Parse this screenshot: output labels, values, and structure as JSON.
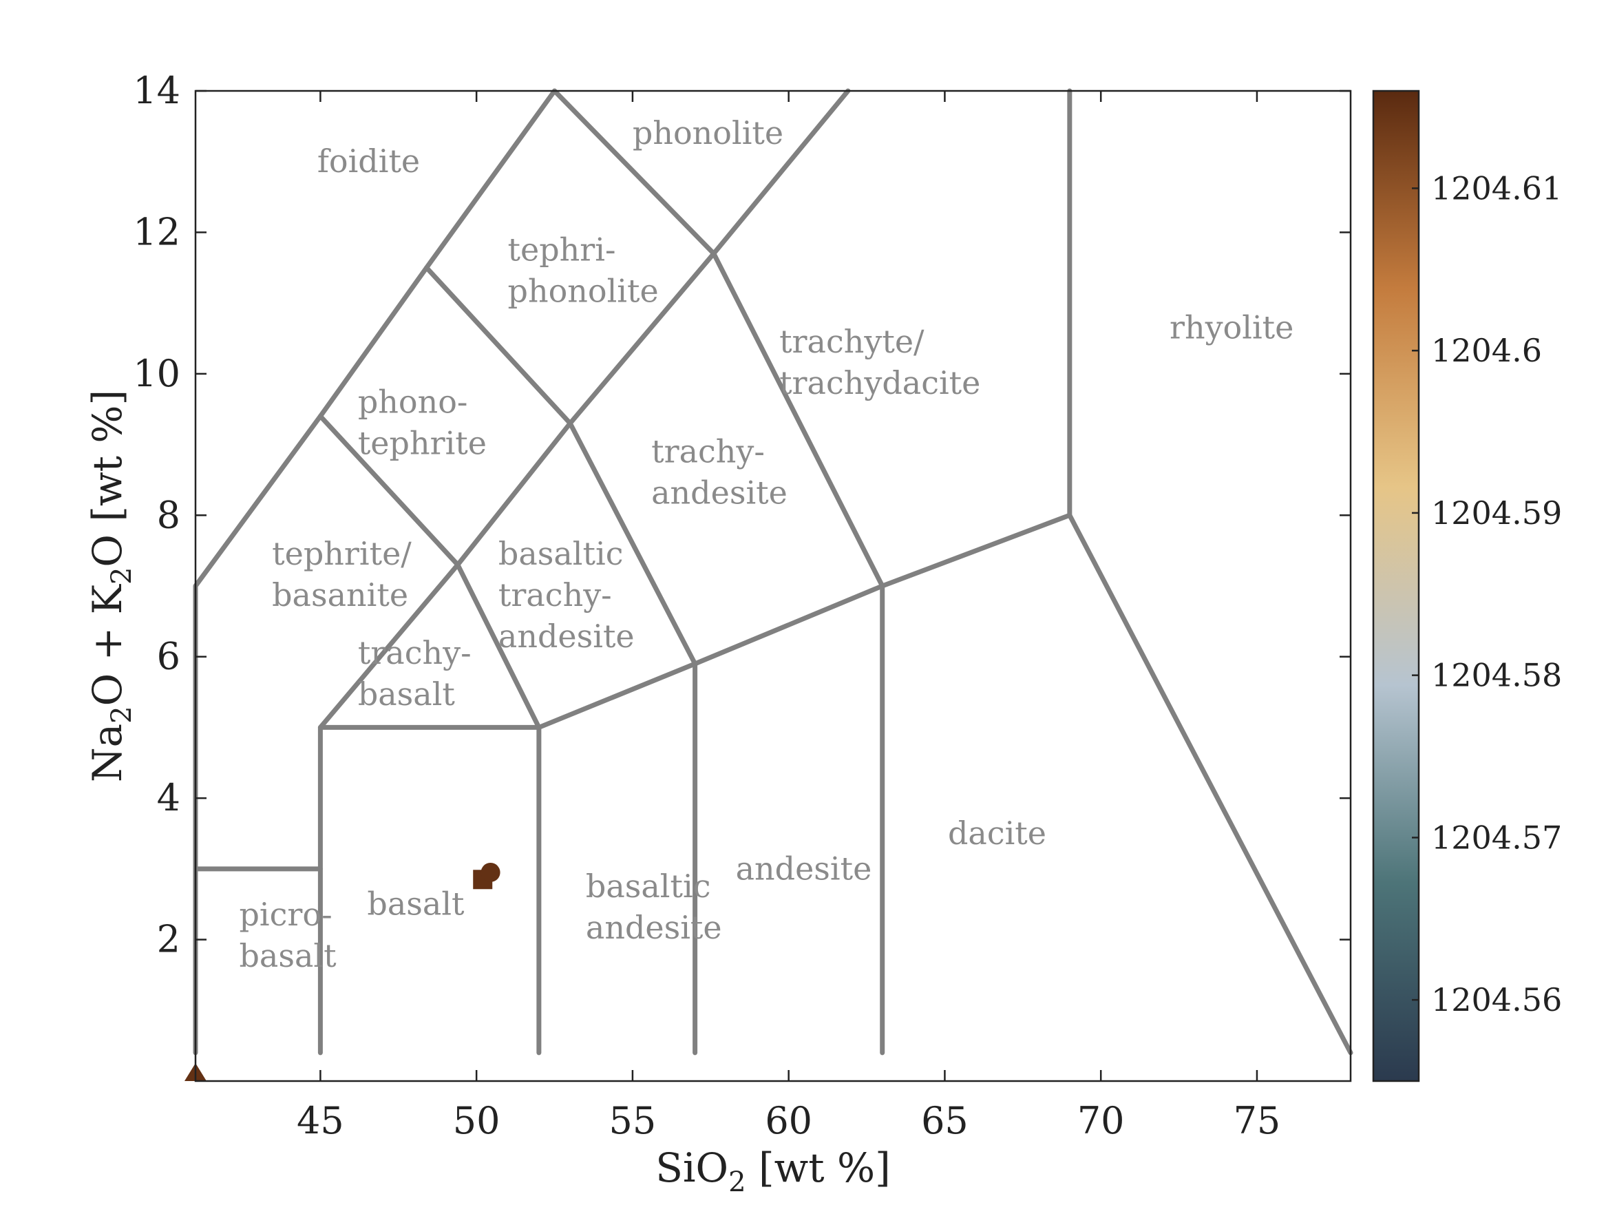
{
  "chart_data": {
    "type": "scatter",
    "xlabel_main": "SiO",
    "xlabel_sub": "2",
    "xlabel_rest": " [wt %]",
    "ylabel_parts": [
      {
        "t": "Na",
        "sub": false
      },
      {
        "t": "2",
        "sub": true
      },
      {
        "t": "O + K",
        "sub": false
      },
      {
        "t": "2",
        "sub": true
      },
      {
        "t": "O [wt %]",
        "sub": false
      }
    ],
    "xlim": [
      41,
      78
    ],
    "ylim": [
      0,
      14
    ],
    "x_ticks": [
      45,
      50,
      55,
      60,
      65,
      70,
      75
    ],
    "x_tick_labels": [
      "45",
      "50",
      "55",
      "60",
      "65",
      "70",
      "75"
    ],
    "y_ticks": [
      2,
      4,
      6,
      8,
      10,
      12,
      14
    ],
    "y_tick_labels": [
      "2",
      "4",
      "6",
      "8",
      "10",
      "12",
      "14"
    ],
    "grid": false,
    "colorbar": {
      "range": [
        1204.555,
        1204.616
      ],
      "ticks": [
        1204.56,
        1204.57,
        1204.58,
        1204.59,
        1204.6,
        1204.61
      ],
      "tick_labels": [
        "1204.56",
        "1204.57",
        "1204.58",
        "1204.59",
        "1204.6",
        "1204.61"
      ],
      "colors": [
        "#2b3a4e",
        "#4d7478",
        "#b6c4d0",
        "#e6c587",
        "#c47c3e",
        "#5a2a10"
      ]
    },
    "boundaries": [
      [
        [
          41,
          0.4
        ],
        [
          41,
          7
        ],
        [
          45,
          9.4
        ],
        [
          48.4,
          11.5
        ],
        [
          52.5,
          14
        ]
      ],
      [
        [
          45,
          0.4
        ],
        [
          45,
          5
        ],
        [
          52,
          5
        ],
        [
          52,
          0.4
        ]
      ],
      [
        [
          41,
          3
        ],
        [
          45,
          3
        ]
      ],
      [
        [
          45,
          5
        ],
        [
          49.4,
          7.3
        ],
        [
          52,
          5
        ]
      ],
      [
        [
          52,
          5
        ],
        [
          57,
          5.9
        ],
        [
          63,
          7
        ],
        [
          69,
          8
        ]
      ],
      [
        [
          57,
          0.4
        ],
        [
          57,
          5.9
        ],
        [
          53,
          9.3
        ],
        [
          48.4,
          11.5
        ]
      ],
      [
        [
          63,
          0.4
        ],
        [
          63,
          7
        ],
        [
          57.6,
          11.7
        ],
        [
          52.5,
          14
        ]
      ],
      [
        [
          45,
          9.4
        ],
        [
          49.4,
          7.3
        ],
        [
          53,
          9.3
        ],
        [
          57.6,
          11.7
        ],
        [
          61.9,
          14
        ]
      ],
      [
        [
          69,
          14
        ],
        [
          69,
          8
        ],
        [
          78,
          0.4
        ]
      ]
    ],
    "regions": [
      {
        "lines": [
          "foidite"
        ],
        "x": 44.9,
        "y": 12.85
      },
      {
        "lines": [
          "phonolite"
        ],
        "x": 55.0,
        "y": 13.25
      },
      {
        "lines": [
          "tephri-",
          "phonolite"
        ],
        "x": 51.0,
        "y": 11.6
      },
      {
        "lines": [
          "phono-",
          "tephrite"
        ],
        "x": 46.2,
        "y": 9.45
      },
      {
        "lines": [
          "tephrite/",
          "basanite"
        ],
        "x": 43.45,
        "y": 7.3
      },
      {
        "lines": [
          "trachy-",
          "basalt"
        ],
        "x": 46.2,
        "y": 5.9
      },
      {
        "lines": [
          "basaltic",
          "trachy-",
          "andesite"
        ],
        "x": 50.7,
        "y": 7.3
      },
      {
        "lines": [
          "trachy-",
          "andesite"
        ],
        "x": 55.6,
        "y": 8.75
      },
      {
        "lines": [
          "trachyte/",
          "trachydacite"
        ],
        "x": 59.7,
        "y": 10.3
      },
      {
        "lines": [
          "rhyolite"
        ],
        "x": 72.2,
        "y": 10.5
      },
      {
        "lines": [
          "picro-",
          "basalt"
        ],
        "x": 42.4,
        "y": 2.2
      },
      {
        "lines": [
          "basalt"
        ],
        "x": 46.5,
        "y": 2.35
      },
      {
        "lines": [
          "basaltic",
          "andesite"
        ],
        "x": 53.5,
        "y": 2.6
      },
      {
        "lines": [
          "andesite"
        ],
        "x": 58.3,
        "y": 2.85
      },
      {
        "lines": [
          "dacite"
        ],
        "x": 65.1,
        "y": 3.35
      }
    ],
    "points": [
      {
        "marker": "square",
        "x": 50.2,
        "y": 2.85,
        "value": 1204.615
      },
      {
        "marker": "circle",
        "x": 50.45,
        "y": 2.95,
        "value": 1204.615
      },
      {
        "marker": "triangle",
        "x": 41.0,
        "y": 0.0,
        "value": 1204.615
      }
    ]
  }
}
